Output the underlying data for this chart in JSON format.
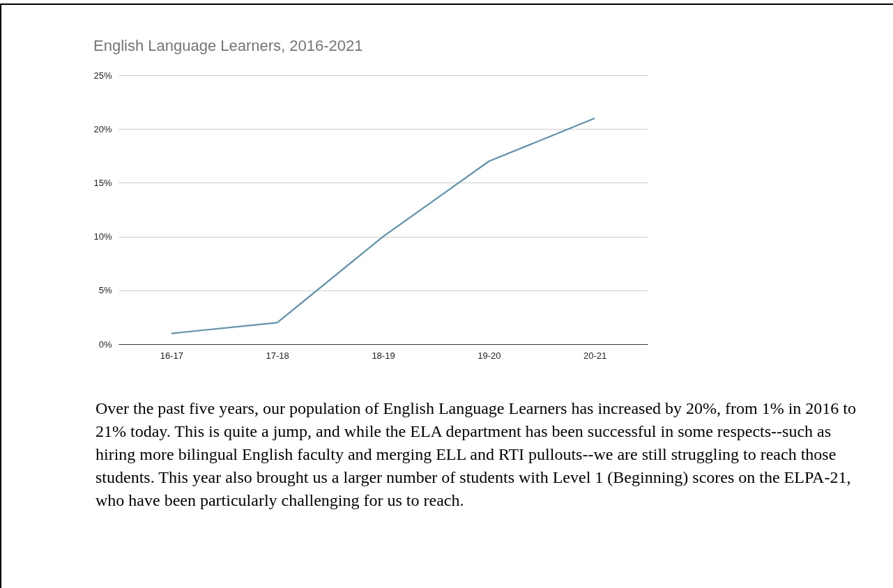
{
  "chart_data": {
    "type": "line",
    "title": "English Language Learners, 2016-2021",
    "categories": [
      "16-17",
      "17-18",
      "18-19",
      "19-20",
      "20-21"
    ],
    "series": [
      {
        "color": "#5b93b0",
        "values": [
          1,
          2,
          10,
          17,
          21
        ]
      }
    ],
    "ylim": [
      0,
      25
    ],
    "yticks": [
      {
        "value": 0,
        "label": "0%"
      },
      {
        "value": 5,
        "label": "5%"
      },
      {
        "value": 10,
        "label": "10%"
      },
      {
        "value": 15,
        "label": "15%"
      },
      {
        "value": 20,
        "label": "20%"
      },
      {
        "value": 25,
        "label": "25%"
      }
    ],
    "grid": "y",
    "annotations": [
      "Over the past five years, our population of English Language Learners has increased by 20%, from 1% in 2016 to 21% today. This is quite a jump, and while the ELA department has been successful in some respects--such as hiring more bilingual English faculty and merging ELL and RTI pullouts--we are still struggling to reach those students. This year also brought us a larger number of students with Level 1 (Beginning) scores on the ELPA-21, who have been particularly challenging for us to reach."
    ]
  }
}
